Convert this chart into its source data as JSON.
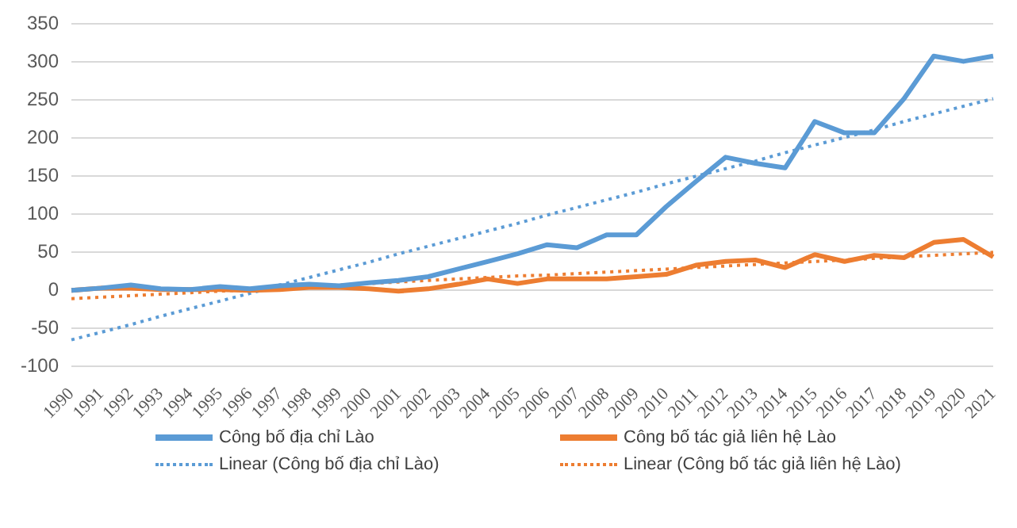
{
  "chart_data": {
    "type": "line",
    "categories": [
      "1990",
      "1991",
      "1992",
      "1993",
      "1994",
      "1995",
      "1996",
      "1997",
      "1998",
      "1999",
      "2000",
      "2001",
      "2002",
      "2003",
      "2004",
      "2005",
      "2006",
      "2007",
      "2008",
      "2009",
      "2010",
      "2011",
      "2012",
      "2013",
      "2014",
      "2015",
      "2016",
      "2017",
      "2018",
      "2019",
      "2020",
      "2021"
    ],
    "series": [
      {
        "name": "Công bố địa chỉ Lào",
        "color": "#5b9bd5",
        "line_style": "solid",
        "values": [
          0,
          3,
          7,
          2,
          1,
          5,
          2,
          6,
          8,
          6,
          10,
          13,
          18,
          28,
          38,
          48,
          60,
          56,
          73,
          73,
          110,
          143,
          175,
          167,
          161,
          222,
          207,
          207,
          252,
          308,
          301,
          308
        ]
      },
      {
        "name": "Công bố tác giả liên hệ Lào",
        "color": "#ed7d31",
        "line_style": "solid",
        "values": [
          0,
          3,
          3,
          1,
          1,
          1,
          0,
          1,
          4,
          4,
          2,
          -1,
          2,
          8,
          15,
          9,
          15,
          15,
          15,
          18,
          21,
          33,
          38,
          40,
          30,
          47,
          38,
          46,
          43,
          63,
          67,
          44
        ]
      },
      {
        "name": "Linear (Công bố địa chỉ Lào)",
        "color": "#5b9bd5",
        "line_style": "dotted",
        "values": [
          -65,
          -55,
          -45,
          -34,
          -24,
          -14,
          -4,
          7,
          17,
          27,
          37,
          48,
          58,
          68,
          78,
          88,
          99,
          109,
          119,
          129,
          140,
          150,
          160,
          170,
          181,
          191,
          201,
          211,
          222,
          232,
          242,
          252
        ]
      },
      {
        "name": "Linear (Công bố tác giả liên hệ Lào)",
        "color": "#ed7d31",
        "line_style": "dotted",
        "values": [
          -11,
          -9,
          -7,
          -5,
          -3,
          -1,
          1,
          3,
          5,
          7,
          9,
          11,
          13,
          15,
          17,
          19,
          20,
          22,
          24,
          26,
          28,
          30,
          32,
          34,
          36,
          38,
          40,
          42,
          44,
          46,
          48,
          50
        ]
      }
    ],
    "ylim": [
      -100,
      350
    ],
    "yticks": [
      -100,
      -50,
      0,
      50,
      100,
      150,
      200,
      250,
      300,
      350
    ],
    "grid": "y",
    "legend": "bottom",
    "marker": "none"
  }
}
